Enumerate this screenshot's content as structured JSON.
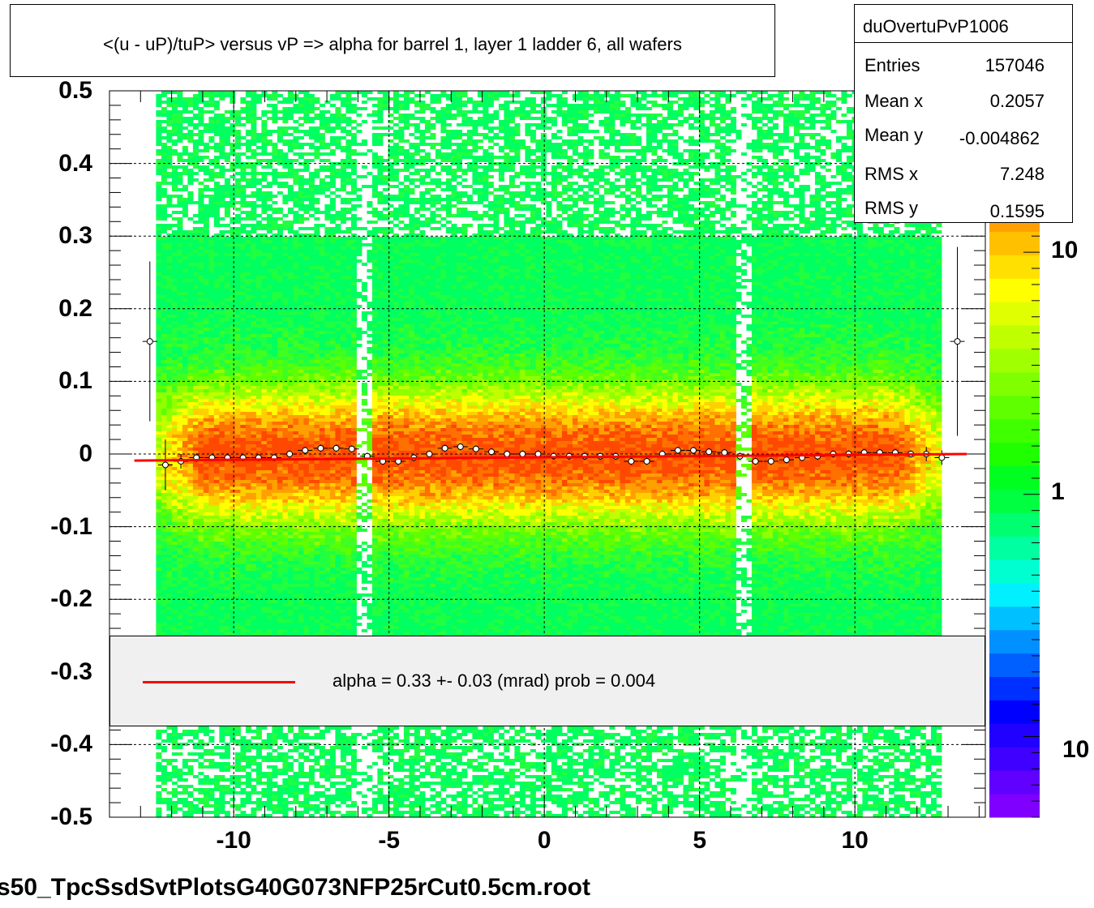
{
  "title": "<(u - uP)/tuP> versus   vP => alpha for barrel 1, layer 1 ladder 6, all wafers",
  "stats": {
    "name": "duOvertuPvP1006",
    "rows": [
      {
        "label": "Entries",
        "value": "157046"
      },
      {
        "label": "Mean x",
        "value": "0.2057"
      },
      {
        "label": "Mean y",
        "value": "-0.004862"
      },
      {
        "label": "RMS x",
        "value": "7.248"
      },
      {
        "label": "RMS y",
        "value": "0.1595"
      }
    ]
  },
  "legend": {
    "text": "alpha =    0.33 +-  0.03 (mrad) prob = 0.004",
    "line_color": "#ff0000"
  },
  "footer": "s50_TpcSsdSvtPlotsG40G073NFP25rCut0.5cm.root",
  "colorbar_ticks": [
    "10",
    "1",
    "10"
  ],
  "chart_data": {
    "type": "heatmap",
    "title": "<(u - uP)/tuP> versus   vP => alpha for barrel 1, layer 1 ladder 6, all wafers",
    "xlim": [
      -14,
      14.2
    ],
    "ylim": [
      -0.5,
      0.5
    ],
    "x_ticks": [
      "-10",
      "-5",
      "0",
      "5",
      "10"
    ],
    "y_ticks": [
      "0.5",
      "0.4",
      "0.3",
      "0.2",
      "0.1",
      "0",
      "-0.1",
      "-0.2",
      "-0.3",
      "-0.4",
      "-0.5"
    ],
    "grid": true,
    "colorscale": [
      "#7f00ff",
      "#4000ff",
      "#0000ff",
      "#0040ff",
      "#0080ff",
      "#00c0ff",
      "#00ffff",
      "#00ff80",
      "#00ff00",
      "#80ff00",
      "#ffff00",
      "#ff8000",
      "#ff0000"
    ],
    "profile_points": {
      "x": [
        -12.7,
        -12.2,
        -11.7,
        -11.2,
        -10.7,
        -10.2,
        -9.7,
        -9.2,
        -8.7,
        -8.2,
        -7.7,
        -7.2,
        -6.7,
        -6.2,
        -5.7,
        -5.2,
        -4.7,
        -4.2,
        -3.7,
        -3.2,
        -2.7,
        -2.2,
        -1.7,
        -1.2,
        -0.7,
        -0.2,
        0.3,
        0.8,
        1.3,
        1.8,
        2.3,
        2.8,
        3.3,
        3.8,
        4.3,
        4.8,
        5.3,
        5.8,
        6.3,
        6.8,
        7.3,
        7.8,
        8.3,
        8.8,
        9.3,
        9.8,
        10.3,
        10.8,
        11.3,
        11.8,
        12.3,
        12.8,
        13.3
      ],
      "y": [
        0.155,
        -0.015,
        -0.01,
        -0.005,
        -0.005,
        -0.005,
        -0.005,
        -0.005,
        -0.005,
        0.0,
        0.005,
        0.008,
        0.008,
        0.007,
        -0.003,
        -0.01,
        -0.01,
        -0.005,
        0.0,
        0.008,
        0.01,
        0.007,
        0.003,
        0.0,
        0.0,
        0.0,
        -0.003,
        -0.003,
        -0.003,
        -0.003,
        -0.003,
        -0.01,
        -0.01,
        0.0,
        0.005,
        0.005,
        0.003,
        0.002,
        -0.003,
        -0.01,
        -0.01,
        -0.008,
        -0.005,
        -0.003,
        0.0,
        0.0,
        0.002,
        0.002,
        0.002,
        0.0,
        0.0,
        -0.005,
        0.155
      ],
      "yerr": [
        0.11,
        0.035,
        0.01,
        0.006,
        0.005,
        0.005,
        0.005,
        0.005,
        0.005,
        0.005,
        0.005,
        0.005,
        0.005,
        0.005,
        0.005,
        0.005,
        0.005,
        0.005,
        0.005,
        0.005,
        0.005,
        0.005,
        0.005,
        0.005,
        0.005,
        0.005,
        0.005,
        0.005,
        0.005,
        0.005,
        0.005,
        0.005,
        0.005,
        0.005,
        0.005,
        0.005,
        0.005,
        0.005,
        0.005,
        0.005,
        0.005,
        0.005,
        0.005,
        0.005,
        0.005,
        0.005,
        0.005,
        0.005,
        0.005,
        0.005,
        0.01,
        0.01,
        0.13
      ]
    },
    "fit_line": {
      "color": "#ff0000",
      "x": [
        -13.2,
        13.6
      ],
      "y": [
        -0.009,
        0.0
      ]
    }
  }
}
